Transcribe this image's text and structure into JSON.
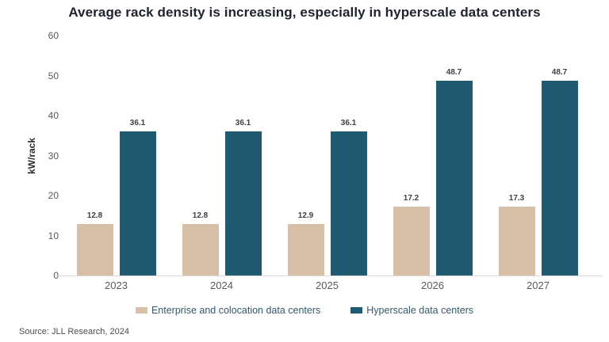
{
  "title": "Average rack density is increasing, especially in hyperscale data centers",
  "source": "Source: JLL Research, 2024",
  "chart_data": {
    "type": "bar",
    "categories": [
      "2023",
      "2024",
      "2025",
      "2026",
      "2027"
    ],
    "series": [
      {
        "name": "Enterprise and colocation data centers",
        "color": "#d8bfa8",
        "values": [
          12.8,
          12.8,
          12.9,
          17.2,
          17.3
        ]
      },
      {
        "name": "Hyperscale data centers",
        "color": "#1f5a71",
        "values": [
          36.1,
          36.1,
          36.1,
          48.7,
          48.7
        ]
      }
    ],
    "title": "Average rack density is increasing, especially in hyperscale data centers",
    "xlabel": "",
    "ylabel": "kW/rack",
    "ylim": [
      0,
      60
    ],
    "yticks": [
      0,
      10,
      20,
      30,
      40,
      50,
      60
    ],
    "grid": false,
    "value_labels": true,
    "legend_position": "bottom"
  }
}
